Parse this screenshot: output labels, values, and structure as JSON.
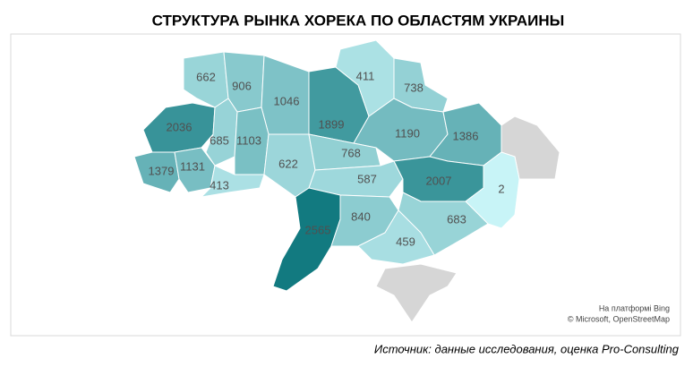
{
  "chart_data": {
    "type": "choropleth",
    "title": "СТРУКТУРА РЫНКА ХОРЕКА ПО ОБЛАСТЯМ УКРАИНЫ",
    "values": [
      662,
      906,
      1046,
      1899,
      411,
      738,
      1190,
      1386,
      2036,
      685,
      1103,
      1379,
      1131,
      413,
      622,
      768,
      587,
      2007,
      2,
      2565,
      840,
      683,
      459
    ],
    "color_range": [
      "#c8f4f7",
      "#127a80"
    ],
    "attribution": [
      "На платформі Bing",
      "© Microsoft, OpenStreetMap"
    ],
    "source": "Источник: данные исследования, оценка Pro-Consulting"
  }
}
